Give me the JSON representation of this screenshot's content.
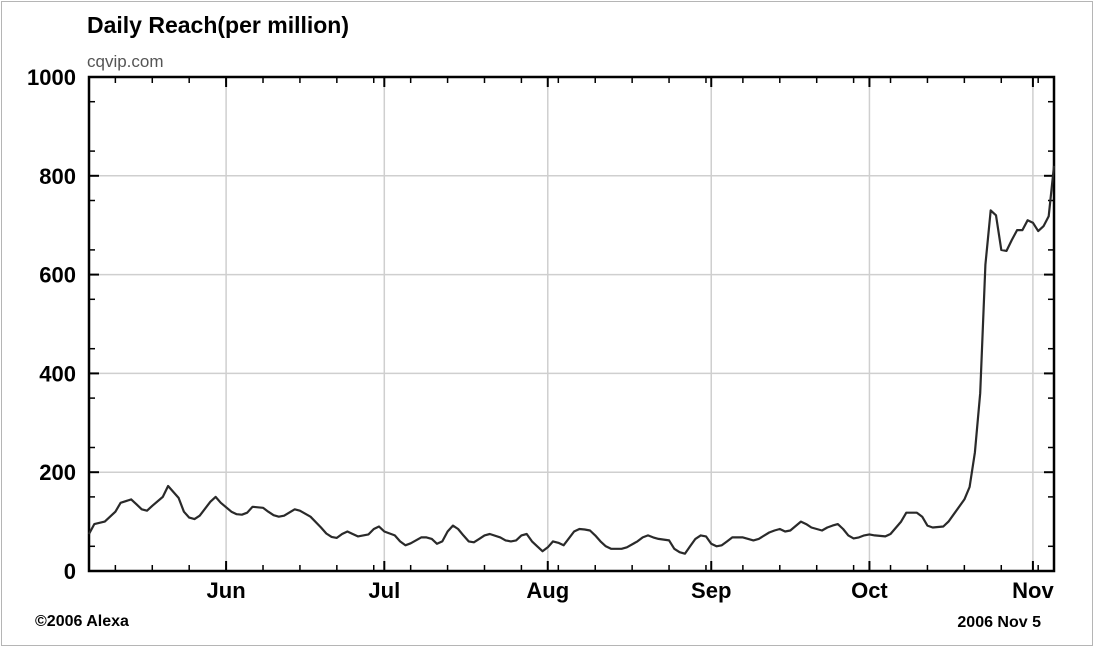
{
  "header": {
    "title": "Daily Reach(per million)",
    "subtitle": "cqvip.com"
  },
  "footer": {
    "copyright": "©2006 Alexa",
    "date": "2006 Nov 5"
  },
  "colors": {
    "line": "#2a2a2a",
    "grid": "#cfcfcf",
    "axis": "#000000"
  },
  "chart_data": {
    "type": "line",
    "title": "Daily Reach(per million)",
    "subtitle": "cqvip.com",
    "xlabel": "",
    "ylabel": "",
    "ylim": [
      0,
      1000
    ],
    "xlim": [
      "2006-05-06",
      "2006-11-05"
    ],
    "y_ticks": [
      "1000",
      "800",
      "600",
      "400",
      "200",
      "0"
    ],
    "x_ticks": [
      {
        "date": "2006-06-01",
        "label": "Jun"
      },
      {
        "date": "2006-07-01",
        "label": "Jul"
      },
      {
        "date": "2006-08-01",
        "label": "Aug"
      },
      {
        "date": "2006-09-01",
        "label": "Sep"
      },
      {
        "date": "2006-10-01",
        "label": "Oct"
      },
      {
        "date": "2006-11-01",
        "label": "Nov"
      }
    ],
    "grid": true,
    "series": [
      {
        "points": [
          [
            "2006-05-06",
            75
          ],
          [
            "2006-05-07",
            95
          ],
          [
            "2006-05-09",
            100
          ],
          [
            "2006-05-11",
            120
          ],
          [
            "2006-05-12",
            138
          ],
          [
            "2006-05-14",
            145
          ],
          [
            "2006-05-15",
            135
          ],
          [
            "2006-05-16",
            125
          ],
          [
            "2006-05-17",
            122
          ],
          [
            "2006-05-18",
            132
          ],
          [
            "2006-05-20",
            150
          ],
          [
            "2006-05-21",
            172
          ],
          [
            "2006-05-22",
            160
          ],
          [
            "2006-05-23",
            148
          ],
          [
            "2006-05-24",
            120
          ],
          [
            "2006-05-25",
            108
          ],
          [
            "2006-05-26",
            105
          ],
          [
            "2006-05-27",
            112
          ],
          [
            "2006-05-29",
            140
          ],
          [
            "2006-05-30",
            150
          ],
          [
            "2006-05-31",
            138
          ],
          [
            "2006-06-02",
            120
          ],
          [
            "2006-06-03",
            115
          ],
          [
            "2006-06-04",
            114
          ],
          [
            "2006-06-05",
            118
          ],
          [
            "2006-06-06",
            130
          ],
          [
            "2006-06-08",
            128
          ],
          [
            "2006-06-09",
            120
          ],
          [
            "2006-06-10",
            113
          ],
          [
            "2006-06-11",
            110
          ],
          [
            "2006-06-12",
            112
          ],
          [
            "2006-06-14",
            125
          ],
          [
            "2006-06-15",
            122
          ],
          [
            "2006-06-17",
            110
          ],
          [
            "2006-06-19",
            88
          ],
          [
            "2006-06-20",
            76
          ],
          [
            "2006-06-21",
            69
          ],
          [
            "2006-06-22",
            67
          ],
          [
            "2006-06-23",
            75
          ],
          [
            "2006-06-24",
            80
          ],
          [
            "2006-06-25",
            75
          ],
          [
            "2006-06-26",
            70
          ],
          [
            "2006-06-28",
            74
          ],
          [
            "2006-06-29",
            85
          ],
          [
            "2006-06-30",
            90
          ],
          [
            "2006-07-01",
            80
          ],
          [
            "2006-07-03",
            72
          ],
          [
            "2006-07-04",
            60
          ],
          [
            "2006-07-05",
            52
          ],
          [
            "2006-07-06",
            56
          ],
          [
            "2006-07-08",
            68
          ],
          [
            "2006-07-09",
            68
          ],
          [
            "2006-07-10",
            65
          ],
          [
            "2006-07-11",
            55
          ],
          [
            "2006-07-12",
            60
          ],
          [
            "2006-07-13",
            80
          ],
          [
            "2006-07-14",
            92
          ],
          [
            "2006-07-15",
            85
          ],
          [
            "2006-07-16",
            72
          ],
          [
            "2006-07-17",
            60
          ],
          [
            "2006-07-18",
            58
          ],
          [
            "2006-07-19",
            65
          ],
          [
            "2006-07-20",
            72
          ],
          [
            "2006-07-21",
            75
          ],
          [
            "2006-07-23",
            68
          ],
          [
            "2006-07-24",
            62
          ],
          [
            "2006-07-25",
            60
          ],
          [
            "2006-07-26",
            62
          ],
          [
            "2006-07-27",
            72
          ],
          [
            "2006-07-28",
            75
          ],
          [
            "2006-07-29",
            60
          ],
          [
            "2006-07-30",
            50
          ],
          [
            "2006-07-31",
            40
          ],
          [
            "2006-08-01",
            48
          ],
          [
            "2006-08-02",
            60
          ],
          [
            "2006-08-03",
            57
          ],
          [
            "2006-08-04",
            52
          ],
          [
            "2006-08-06",
            80
          ],
          [
            "2006-08-07",
            85
          ],
          [
            "2006-08-08",
            84
          ],
          [
            "2006-08-09",
            82
          ],
          [
            "2006-08-10",
            72
          ],
          [
            "2006-08-11",
            60
          ],
          [
            "2006-08-12",
            50
          ],
          [
            "2006-08-13",
            45
          ],
          [
            "2006-08-15",
            45
          ],
          [
            "2006-08-16",
            48
          ],
          [
            "2006-08-18",
            60
          ],
          [
            "2006-08-19",
            68
          ],
          [
            "2006-08-20",
            72
          ],
          [
            "2006-08-21",
            68
          ],
          [
            "2006-08-22",
            65
          ],
          [
            "2006-08-24",
            62
          ],
          [
            "2006-08-25",
            45
          ],
          [
            "2006-08-26",
            38
          ],
          [
            "2006-08-27",
            35
          ],
          [
            "2006-08-28",
            50
          ],
          [
            "2006-08-29",
            65
          ],
          [
            "2006-08-30",
            72
          ],
          [
            "2006-08-31",
            70
          ],
          [
            "2006-09-01",
            55
          ],
          [
            "2006-09-02",
            50
          ],
          [
            "2006-09-03",
            52
          ],
          [
            "2006-09-04",
            60
          ],
          [
            "2006-09-05",
            68
          ],
          [
            "2006-09-07",
            68
          ],
          [
            "2006-09-08",
            65
          ],
          [
            "2006-09-09",
            62
          ],
          [
            "2006-09-10",
            65
          ],
          [
            "2006-09-12",
            78
          ],
          [
            "2006-09-13",
            82
          ],
          [
            "2006-09-14",
            85
          ],
          [
            "2006-09-15",
            80
          ],
          [
            "2006-09-16",
            82
          ],
          [
            "2006-09-18",
            100
          ],
          [
            "2006-09-19",
            95
          ],
          [
            "2006-09-20",
            88
          ],
          [
            "2006-09-21",
            85
          ],
          [
            "2006-09-22",
            82
          ],
          [
            "2006-09-23",
            88
          ],
          [
            "2006-09-24",
            92
          ],
          [
            "2006-09-25",
            95
          ],
          [
            "2006-09-26",
            85
          ],
          [
            "2006-09-27",
            72
          ],
          [
            "2006-09-28",
            66
          ],
          [
            "2006-09-29",
            68
          ],
          [
            "2006-09-30",
            72
          ],
          [
            "2006-10-01",
            74
          ],
          [
            "2006-10-02",
            72
          ],
          [
            "2006-10-04",
            70
          ],
          [
            "2006-10-05",
            75
          ],
          [
            "2006-10-07",
            100
          ],
          [
            "2006-10-08",
            118
          ],
          [
            "2006-10-10",
            118
          ],
          [
            "2006-10-11",
            110
          ],
          [
            "2006-10-12",
            92
          ],
          [
            "2006-10-13",
            88
          ],
          [
            "2006-10-15",
            90
          ],
          [
            "2006-10-16",
            100
          ],
          [
            "2006-10-17",
            115
          ],
          [
            "2006-10-19",
            145
          ],
          [
            "2006-10-20",
            170
          ],
          [
            "2006-10-21",
            240
          ],
          [
            "2006-10-22",
            360
          ],
          [
            "2006-10-23",
            620
          ],
          [
            "2006-10-24",
            730
          ],
          [
            "2006-10-25",
            720
          ],
          [
            "2006-10-26",
            650
          ],
          [
            "2006-10-27",
            648
          ],
          [
            "2006-10-28",
            670
          ],
          [
            "2006-10-29",
            690
          ],
          [
            "2006-10-30",
            690
          ],
          [
            "2006-10-31",
            710
          ],
          [
            "2006-11-01",
            705
          ],
          [
            "2006-11-02",
            688
          ],
          [
            "2006-11-03",
            698
          ],
          [
            "2006-11-04",
            718
          ],
          [
            "2006-11-05",
            820
          ]
        ]
      }
    ]
  }
}
